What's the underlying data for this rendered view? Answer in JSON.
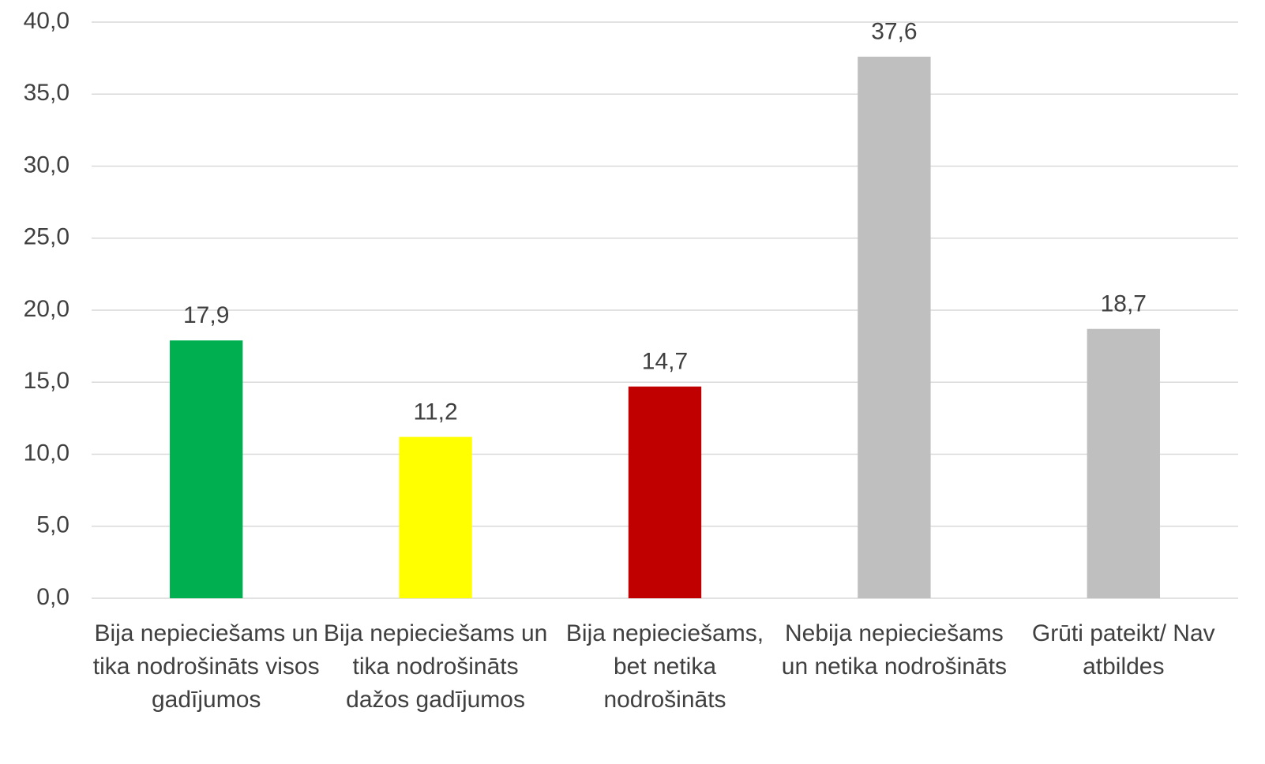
{
  "chart_data": {
    "type": "bar",
    "categories": [
      "Bija nepieciešams un tika nodrošināts visos gadījumos",
      "Bija nepieciešams un tika nodrošināts dažos gadījumos",
      "Bija nepieciešams, bet netika nodrošināts",
      "Nebija nepieciešams un netika nodrošināts",
      "Grūti pateikt/ Nav atbildes"
    ],
    "values": [
      17.9,
      11.2,
      14.7,
      37.6,
      18.7
    ],
    "value_labels": [
      "17,9",
      "11,2",
      "14,7",
      "37,6",
      "18,7"
    ],
    "colors": [
      "#00b050",
      "#ffff00",
      "#c00000",
      "#bfbfbf",
      "#bfbfbf"
    ],
    "ylim": [
      0,
      40
    ],
    "yticks": [
      {
        "value": 0,
        "label": "0,0"
      },
      {
        "value": 5,
        "label": "5,0"
      },
      {
        "value": 10,
        "label": "10,0"
      },
      {
        "value": 15,
        "label": "15,0"
      },
      {
        "value": 20,
        "label": "20,0"
      },
      {
        "value": 25,
        "label": "25,0"
      },
      {
        "value": 30,
        "label": "30,0"
      },
      {
        "value": 35,
        "label": "35,0"
      },
      {
        "value": 40,
        "label": "40,0"
      }
    ],
    "grid": true
  }
}
